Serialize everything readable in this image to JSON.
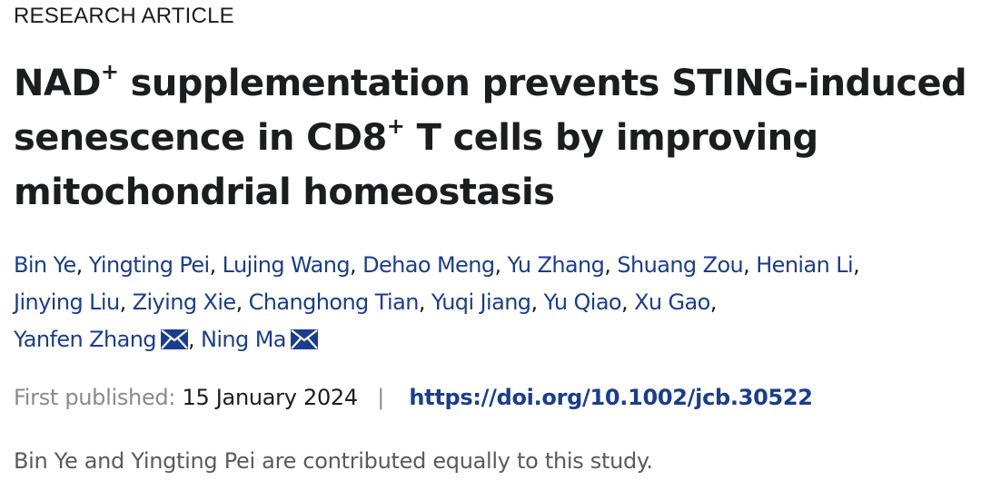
{
  "article": {
    "type": "RESEARCH ARTICLE",
    "title": {
      "p1": "NAD",
      "sup1": "+",
      "p2": " supplementation prevents STING-induced",
      "p3": "senescence in CD8",
      "sup2": "+",
      "p4": " T cells by improving",
      "p5": "mitochondrial homeostasis"
    },
    "authors": [
      {
        "name": "Bin Ye"
      },
      {
        "name": "Yingting Pei"
      },
      {
        "name": "Lujing Wang"
      },
      {
        "name": "Dehao Meng"
      },
      {
        "name": "Yu Zhang"
      },
      {
        "name": "Shuang Zou"
      },
      {
        "name": "Henian Li"
      },
      {
        "name": "Jinying Liu"
      },
      {
        "name": "Ziying Xie"
      },
      {
        "name": "Changhong Tian"
      },
      {
        "name": "Yuqi Jiang"
      },
      {
        "name": "Yu Qiao"
      },
      {
        "name": "Xu Gao"
      },
      {
        "name": "Yanfen Zhang",
        "icon": "mail-icon"
      },
      {
        "name": "Ning Ma",
        "icon": "mail-icon"
      }
    ],
    "separator": ",",
    "publication": {
      "label": "First published:",
      "date": "15 January 2024",
      "divider": "|",
      "doi": "https://doi.org/10.1002/jcb.30522"
    },
    "note": "Bin Ye and Yingting Pei are contributed equally to this study."
  },
  "colors": {
    "text": "#1c1d1e",
    "link": "#1a3d8f",
    "muted": "#8a8a8a"
  }
}
